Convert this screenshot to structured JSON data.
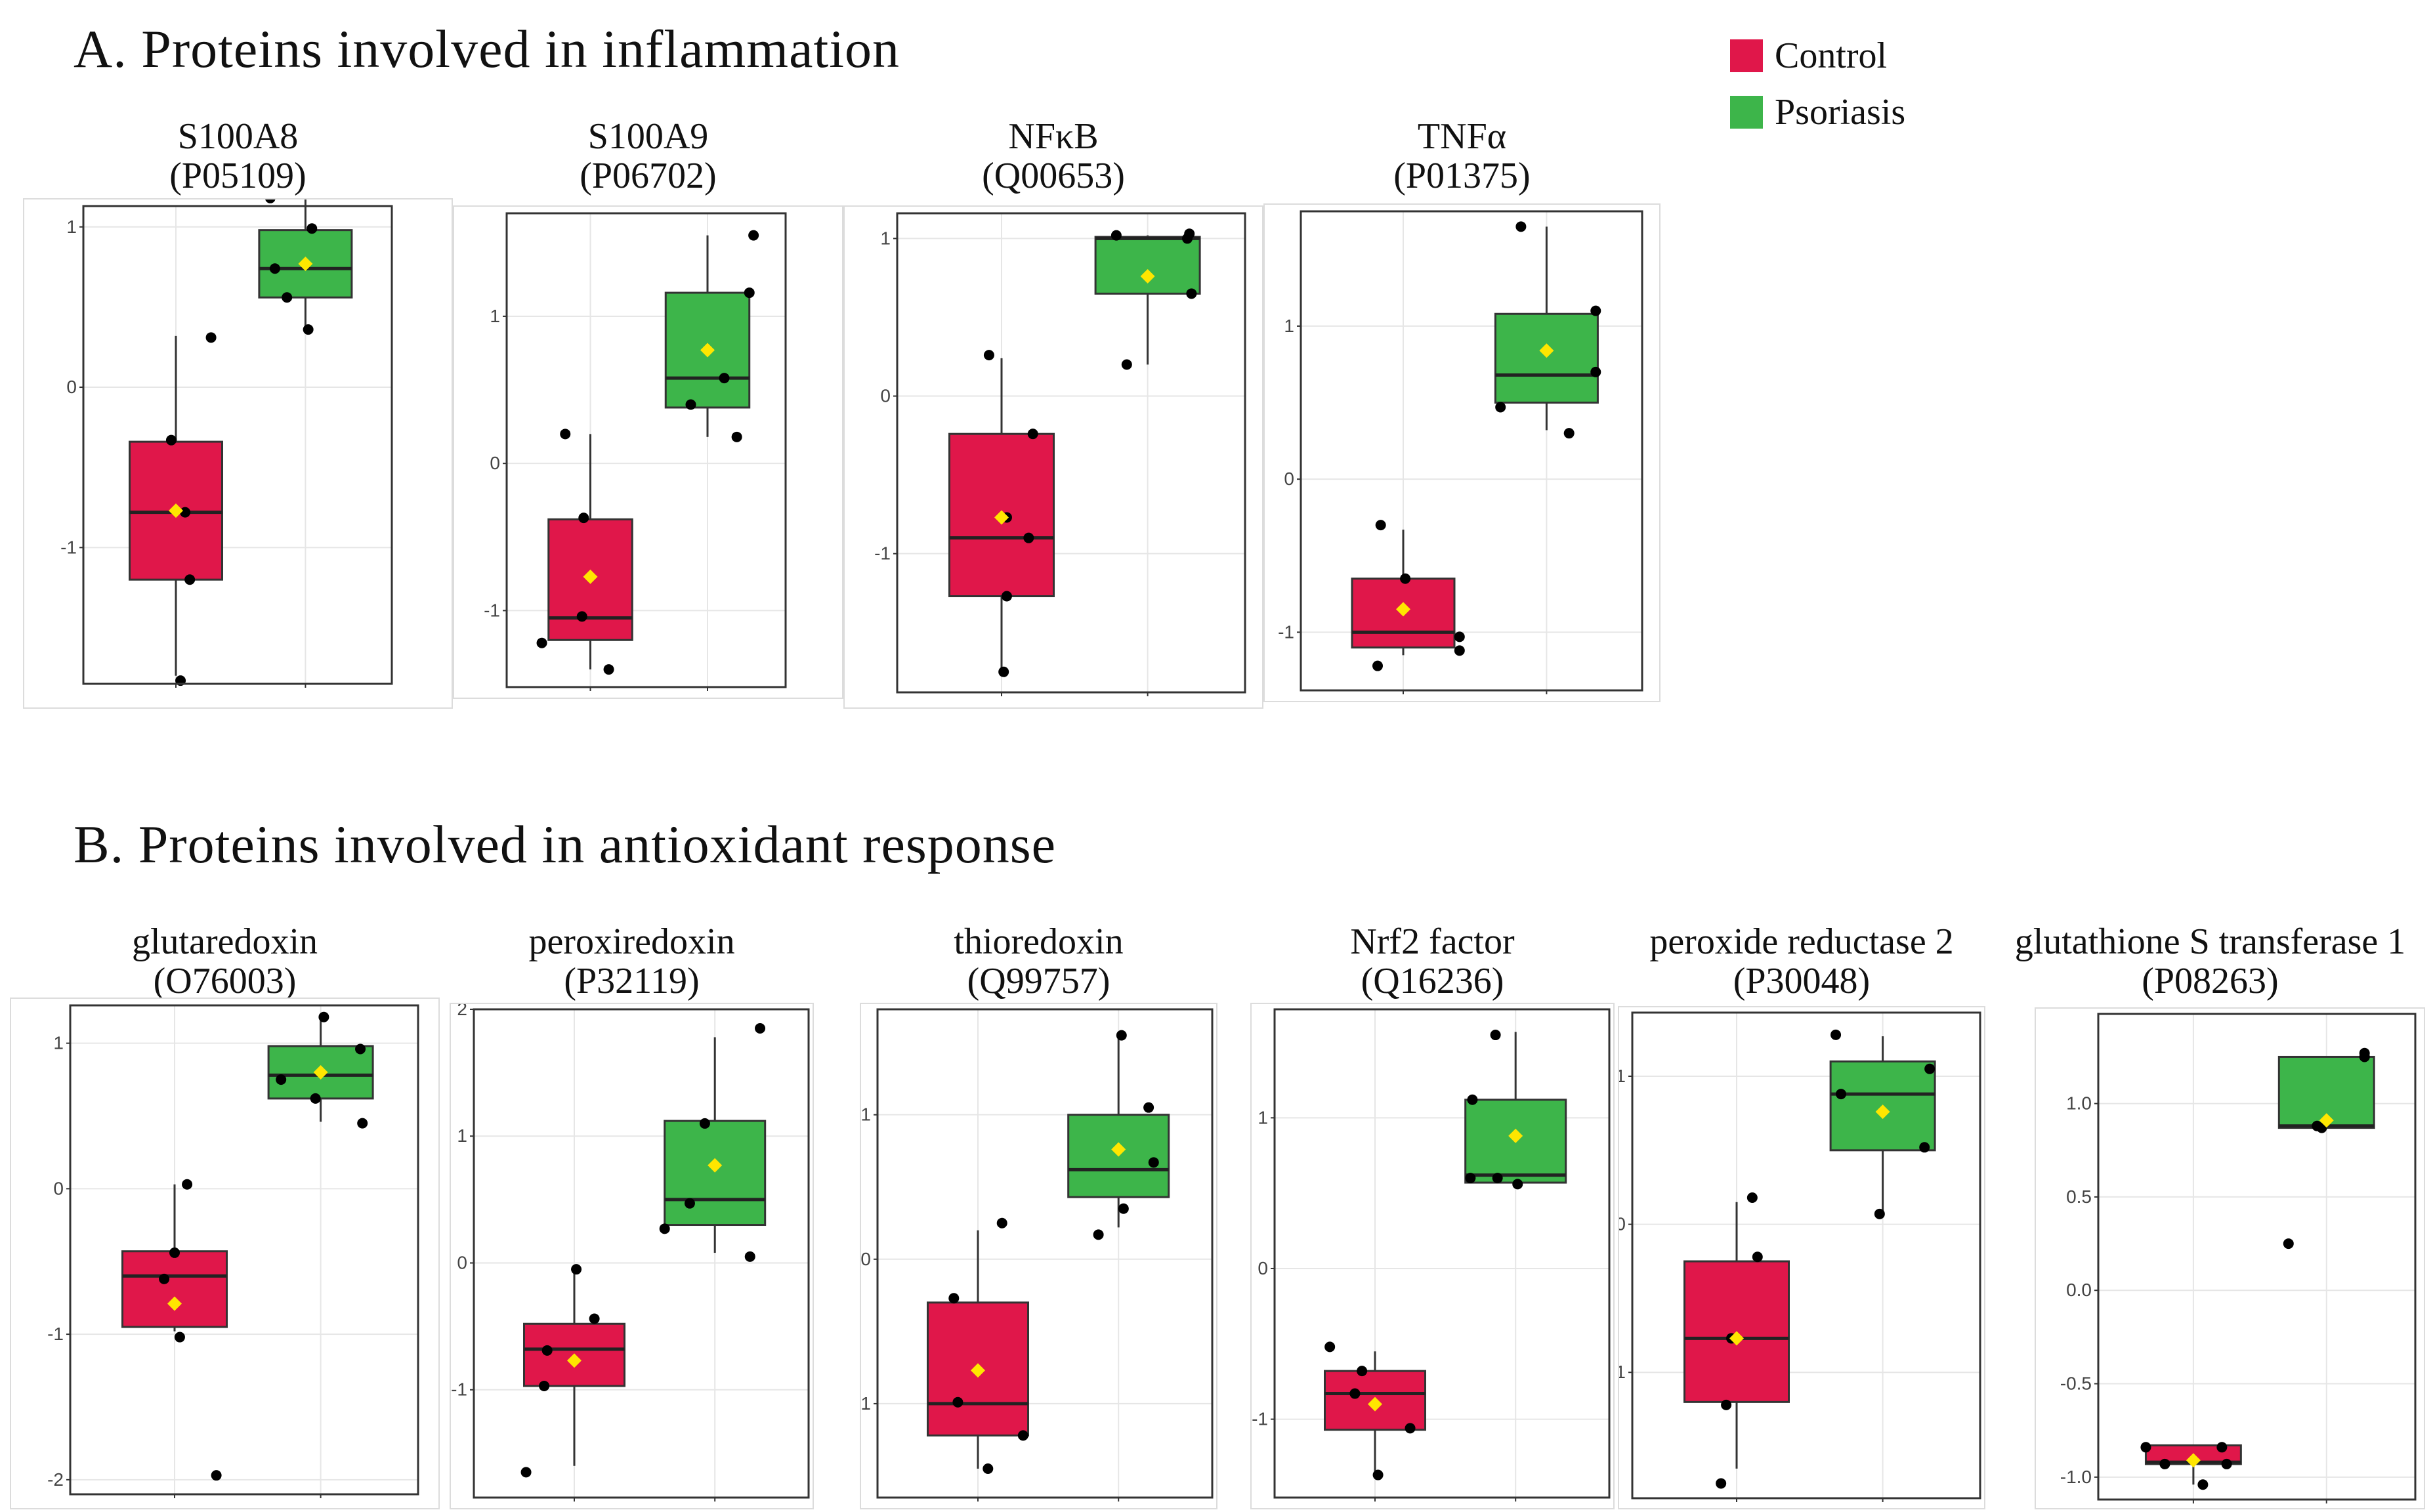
{
  "section_a": {
    "title": "A. Proteins involved in inflammation"
  },
  "section_b": {
    "title": "B. Proteins involved in antioxidant response"
  },
  "legend": [
    {
      "label": "Control",
      "color": "#e0174a"
    },
    {
      "label": "Psoriasis",
      "color": "#3db54a"
    }
  ],
  "colors": {
    "control": "#e0174a",
    "psoriasis": "#3db54a",
    "mean_marker": "#ffe600",
    "point": "#000000"
  },
  "chart_data": [
    {
      "type": "box",
      "panel": "S100A8",
      "title": "S100A8",
      "id": "(P05109)",
      "ylim": [
        -1.85,
        1.13
      ],
      "ticks": [
        "-1",
        "0",
        "1"
      ],
      "tick_values": [
        -1,
        0,
        1
      ],
      "groups": [
        {
          "name": "Control",
          "q1": -1.2,
          "median": -0.78,
          "q3": -0.34,
          "whisker_low": -1.8,
          "whisker_high": 0.32,
          "mean": -0.77,
          "points": [
            [
              -0.05,
              -0.33
            ],
            [
              0.1,
              -0.78
            ],
            [
              0.15,
              -1.2
            ],
            [
              0.05,
              -1.83
            ],
            [
              0.38,
              0.31
            ]
          ]
        },
        {
          "name": "Psoriasis",
          "q1": 0.56,
          "median": 0.74,
          "q3": 0.98,
          "whisker_low": 0.36,
          "whisker_high": 1.18,
          "mean": 0.77,
          "points": [
            [
              -0.38,
              1.18
            ],
            [
              -0.33,
              0.74
            ],
            [
              -0.2,
              0.56
            ],
            [
              0.07,
              0.99
            ],
            [
              0.03,
              0.36
            ]
          ]
        }
      ]
    },
    {
      "type": "box",
      "panel": "S100A9",
      "title": "S100A9",
      "id": "(P06702)",
      "ylim": [
        -1.52,
        1.7
      ],
      "ticks": [
        "-1",
        "0",
        "1"
      ],
      "tick_values": [
        -1,
        0,
        1
      ],
      "groups": [
        {
          "name": "Control",
          "q1": -1.2,
          "median": -1.05,
          "q3": -0.38,
          "whisker_low": -1.4,
          "whisker_high": 0.2,
          "mean": -0.77,
          "points": [
            [
              -0.3,
              0.2
            ],
            [
              -0.58,
              -1.22
            ],
            [
              -0.08,
              -0.37
            ],
            [
              -0.1,
              -1.04
            ],
            [
              0.22,
              -1.4
            ]
          ]
        },
        {
          "name": "Psoriasis",
          "q1": 0.38,
          "median": 0.58,
          "q3": 1.16,
          "whisker_low": 0.18,
          "whisker_high": 1.55,
          "mean": 0.77,
          "points": [
            [
              -0.2,
              0.4
            ],
            [
              0.2,
              0.58
            ],
            [
              0.35,
              0.18
            ],
            [
              0.55,
              1.55
            ],
            [
              0.5,
              1.16
            ]
          ]
        }
      ]
    },
    {
      "type": "box",
      "panel": "NFkB",
      "title": "NFκB",
      "id": "(Q00653)",
      "ylim": [
        -1.88,
        1.16
      ],
      "ticks": [
        "-1",
        "0",
        "1"
      ],
      "tick_values": [
        -1,
        0,
        1
      ],
      "groups": [
        {
          "name": "Control",
          "q1": -1.27,
          "median": -0.9,
          "q3": -0.24,
          "whisker_low": -1.75,
          "whisker_high": 0.24,
          "mean": -0.77,
          "points": [
            [
              -0.12,
              0.26
            ],
            [
              0.05,
              -0.77
            ],
            [
              0.26,
              -0.9
            ],
            [
              0.05,
              -1.27
            ],
            [
              0.3,
              -0.24
            ],
            [
              0.02,
              -1.75
            ]
          ]
        },
        {
          "name": "Psoriasis",
          "q1": 0.65,
          "median": 1.0,
          "q3": 1.01,
          "whisker_low": 0.2,
          "whisker_high": 1.02,
          "mean": 0.76,
          "points": [
            [
              -0.3,
              1.02
            ],
            [
              -0.2,
              0.2
            ],
            [
              0.38,
              1.0
            ],
            [
              0.4,
              1.03
            ],
            [
              0.42,
              0.65
            ]
          ]
        }
      ]
    },
    {
      "type": "box",
      "panel": "TNFa",
      "title": "TNFα",
      "id": "(P01375)",
      "ylim": [
        -1.38,
        1.75
      ],
      "ticks": [
        "-1",
        "0",
        "1"
      ],
      "tick_values": [
        -1,
        0,
        1
      ],
      "groups": [
        {
          "name": "Control",
          "q1": -1.1,
          "median": -1.0,
          "q3": -0.65,
          "whisker_low": -1.15,
          "whisker_high": -0.33,
          "mean": -0.85,
          "points": [
            [
              -0.22,
              -0.3
            ],
            [
              0.02,
              -0.65
            ],
            [
              0.55,
              -1.03
            ],
            [
              0.55,
              -1.12
            ],
            [
              -0.25,
              -1.22
            ]
          ]
        },
        {
          "name": "Psoriasis",
          "q1": 0.5,
          "median": 0.68,
          "q3": 1.08,
          "whisker_low": 0.32,
          "whisker_high": 1.65,
          "mean": 0.84,
          "points": [
            [
              -0.45,
              0.47
            ],
            [
              -0.25,
              1.65
            ],
            [
              0.22,
              0.3
            ],
            [
              0.48,
              1.1
            ],
            [
              0.48,
              0.7
            ]
          ]
        }
      ]
    },
    {
      "type": "box",
      "panel": "glutaredoxin",
      "title": "glutaredoxin",
      "id": "(O76003)",
      "ylim": [
        -2.1,
        1.26
      ],
      "ticks": [
        "-2",
        "-1",
        "0",
        "1"
      ],
      "tick_values": [
        -2,
        -1,
        0,
        1
      ],
      "groups": [
        {
          "name": "Control",
          "q1": -0.95,
          "median": -0.6,
          "q3": -0.43,
          "whisker_low": -0.98,
          "whisker_high": 0.03,
          "mean": -0.79,
          "points": [
            [
              0.0,
              -0.44
            ],
            [
              -0.1,
              -0.62
            ],
            [
              0.05,
              -1.02
            ],
            [
              0.12,
              0.03
            ],
            [
              0.4,
              -1.97
            ]
          ]
        },
        {
          "name": "Psoriasis",
          "q1": 0.62,
          "median": 0.78,
          "q3": 0.98,
          "whisker_low": 0.46,
          "whisker_high": 1.18,
          "mean": 0.8,
          "points": [
            [
              -0.38,
              0.75
            ],
            [
              -0.05,
              0.62
            ],
            [
              0.03,
              1.18
            ],
            [
              0.38,
              0.96
            ],
            [
              0.4,
              0.45
            ]
          ]
        }
      ]
    },
    {
      "type": "box",
      "panel": "peroxiredoxin",
      "title": "peroxiredoxin",
      "id": "(P32119)",
      "ylim": [
        -1.85,
        2.0
      ],
      "ticks": [
        "-1",
        "0",
        "1",
        "2"
      ],
      "tick_values": [
        -1,
        0,
        1,
        2
      ],
      "groups": [
        {
          "name": "Control",
          "q1": -0.97,
          "median": -0.68,
          "q3": -0.48,
          "whisker_low": -1.6,
          "whisker_high": -0.05,
          "mean": -0.77,
          "points": [
            [
              -0.3,
              -0.97
            ],
            [
              -0.27,
              -0.69
            ],
            [
              0.02,
              -0.05
            ],
            [
              0.2,
              -0.44
            ],
            [
              -0.48,
              -1.65
            ]
          ]
        },
        {
          "name": "Psoriasis",
          "q1": 0.3,
          "median": 0.5,
          "q3": 1.12,
          "whisker_low": 0.08,
          "whisker_high": 1.78,
          "mean": 0.77,
          "points": [
            [
              -0.5,
              0.27
            ],
            [
              -0.25,
              0.47
            ],
            [
              -0.1,
              1.1
            ],
            [
              0.35,
              0.05
            ],
            [
              0.45,
              1.85
            ]
          ]
        }
      ]
    },
    {
      "type": "box",
      "panel": "thioredoxin",
      "title": "thioredoxin",
      "id": "(Q99757)",
      "ylim": [
        -1.65,
        1.73
      ],
      "ticks": [
        "-1",
        "0",
        "1"
      ],
      "tick_values": [
        -1,
        0,
        1
      ],
      "groups": [
        {
          "name": "Control",
          "q1": -1.22,
          "median": -1.0,
          "q3": -0.3,
          "whisker_low": -1.45,
          "whisker_high": 0.2,
          "mean": -0.77,
          "points": [
            [
              -0.24,
              -0.27
            ],
            [
              -0.2,
              -0.99
            ],
            [
              0.24,
              0.25
            ],
            [
              0.1,
              -1.45
            ],
            [
              0.45,
              -1.22
            ]
          ]
        },
        {
          "name": "Psoriasis",
          "q1": 0.43,
          "median": 0.62,
          "q3": 1.0,
          "whisker_low": 0.22,
          "whisker_high": 1.55,
          "mean": 0.76,
          "points": [
            [
              -0.2,
              0.17
            ],
            [
              0.03,
              1.55
            ],
            [
              0.05,
              0.35
            ],
            [
              0.3,
              1.05
            ],
            [
              0.35,
              0.67
            ]
          ]
        }
      ]
    },
    {
      "type": "box",
      "panel": "Nrf2 factor",
      "title": "Nrf2 factor",
      "id": "(Q16236)",
      "ylim": [
        -1.52,
        1.72
      ],
      "ticks": [
        "-1",
        "0",
        "1"
      ],
      "tick_values": [
        -1,
        0,
        1
      ],
      "groups": [
        {
          "name": "Control",
          "q1": -1.07,
          "median": -0.83,
          "q3": -0.68,
          "whisker_low": -1.38,
          "whisker_high": -0.55,
          "mean": -0.9,
          "points": [
            [
              -0.45,
              -0.52
            ],
            [
              -0.2,
              -0.83
            ],
            [
              -0.13,
              -0.68
            ],
            [
              0.03,
              -1.37
            ],
            [
              0.35,
              -1.06
            ]
          ]
        },
        {
          "name": "Psoriasis",
          "q1": 0.57,
          "median": 0.62,
          "q3": 1.12,
          "whisker_low": 0.55,
          "whisker_high": 1.57,
          "mean": 0.88,
          "points": [
            [
              -0.45,
              0.6
            ],
            [
              -0.43,
              1.12
            ],
            [
              -0.18,
              0.6
            ],
            [
              -0.2,
              1.55
            ],
            [
              0.02,
              0.56
            ]
          ]
        }
      ]
    },
    {
      "type": "box",
      "panel": "peroxide reductase 2",
      "title": "peroxide reductase 2",
      "id": "(P30048)",
      "ylim": [
        -1.85,
        1.43
      ],
      "ticks": [
        "-1",
        "0",
        "1"
      ],
      "tick_values": [
        -1,
        0,
        1
      ],
      "groups": [
        {
          "name": "Control",
          "q1": -1.2,
          "median": -0.77,
          "q3": -0.25,
          "whisker_low": -1.65,
          "whisker_high": 0.15,
          "mean": -0.77,
          "points": [
            [
              -0.05,
              -0.77
            ],
            [
              -0.1,
              -1.22
            ],
            [
              0.15,
              0.18
            ],
            [
              0.2,
              -0.22
            ],
            [
              -0.15,
              -1.75
            ]
          ]
        },
        {
          "name": "Psoriasis",
          "q1": 0.5,
          "median": 0.88,
          "q3": 1.1,
          "whisker_low": 0.08,
          "whisker_high": 1.27,
          "mean": 0.76,
          "points": [
            [
              -0.45,
              1.28
            ],
            [
              -0.4,
              0.88
            ],
            [
              -0.03,
              0.07
            ],
            [
              0.45,
              1.05
            ],
            [
              0.4,
              0.52
            ]
          ]
        }
      ]
    },
    {
      "type": "box",
      "panel": "glutathione S transferase 1",
      "title": "glutathione S transferase 1",
      "id": "(P08263)",
      "ylim": [
        -1.12,
        1.48
      ],
      "ticks": [
        "-1.0",
        "-0.5",
        "0.0",
        "0.5",
        "1.0"
      ],
      "tick_values": [
        -1.0,
        -0.5,
        0.0,
        0.5,
        1.0
      ],
      "groups": [
        {
          "name": "Control",
          "q1": -0.93,
          "median": -0.92,
          "q3": -0.83,
          "whisker_low": -1.04,
          "whisker_high": -0.83,
          "mean": -0.91,
          "points": [
            [
              -0.5,
              -0.84
            ],
            [
              -0.3,
              -0.93
            ],
            [
              0.1,
              -1.04
            ],
            [
              0.3,
              -0.84
            ],
            [
              0.35,
              -0.93
            ]
          ]
        },
        {
          "name": "Psoriasis",
          "q1": 0.87,
          "median": 0.88,
          "q3": 1.25,
          "whisker_low": 0.87,
          "whisker_high": 1.25,
          "mean": 0.91,
          "points": [
            [
              -0.4,
              0.25
            ],
            [
              -0.1,
              0.88
            ],
            [
              -0.05,
              0.87
            ],
            [
              0.4,
              1.27
            ],
            [
              0.4,
              1.25
            ]
          ]
        }
      ]
    }
  ]
}
